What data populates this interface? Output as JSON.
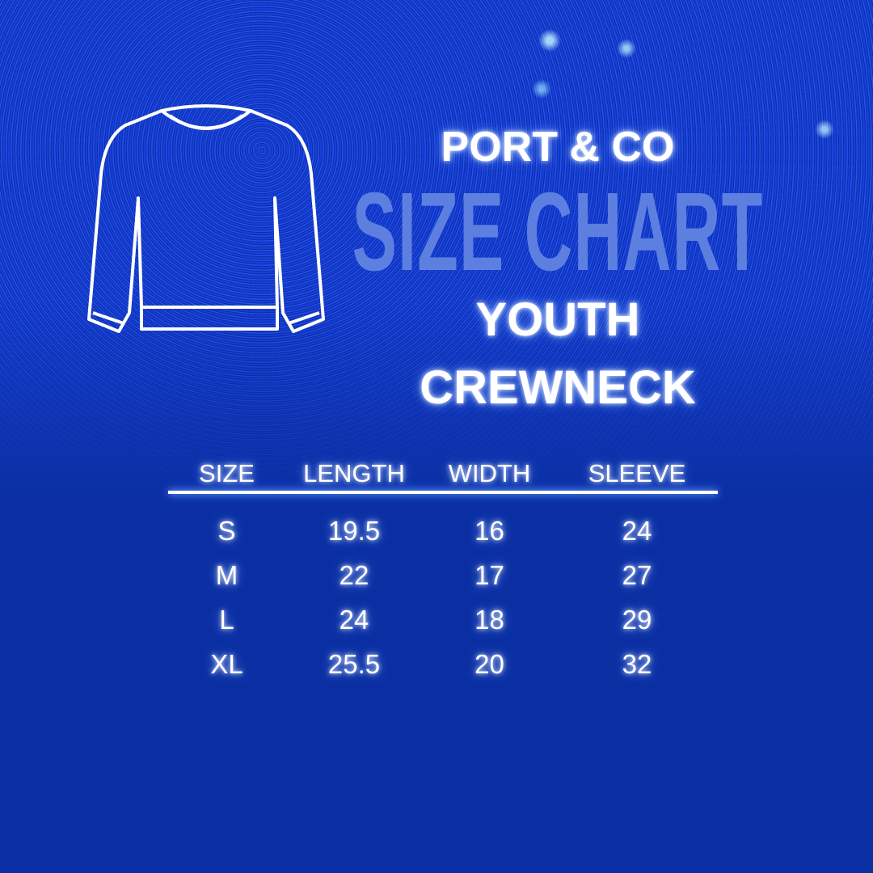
{
  "header": {
    "brand": "PORT & CO",
    "title": "SIZE CHART",
    "line1": "YOUTH",
    "line2": "CREWNECK"
  },
  "icons": {
    "garment": "crewneck-sweatshirt-outline-icon"
  },
  "colors": {
    "background": "#0b2fa3",
    "title": "#5d7fe0",
    "text": "#ffffff"
  },
  "table": {
    "columns": [
      "SIZE",
      "LENGTH",
      "WIDTH",
      "SLEEVE"
    ],
    "rows": [
      [
        "S",
        "19.5",
        "16",
        "24"
      ],
      [
        "M",
        "22",
        "17",
        "27"
      ],
      [
        "L",
        "24",
        "18",
        "29"
      ],
      [
        "XL",
        "25.5",
        "20",
        "32"
      ]
    ]
  }
}
